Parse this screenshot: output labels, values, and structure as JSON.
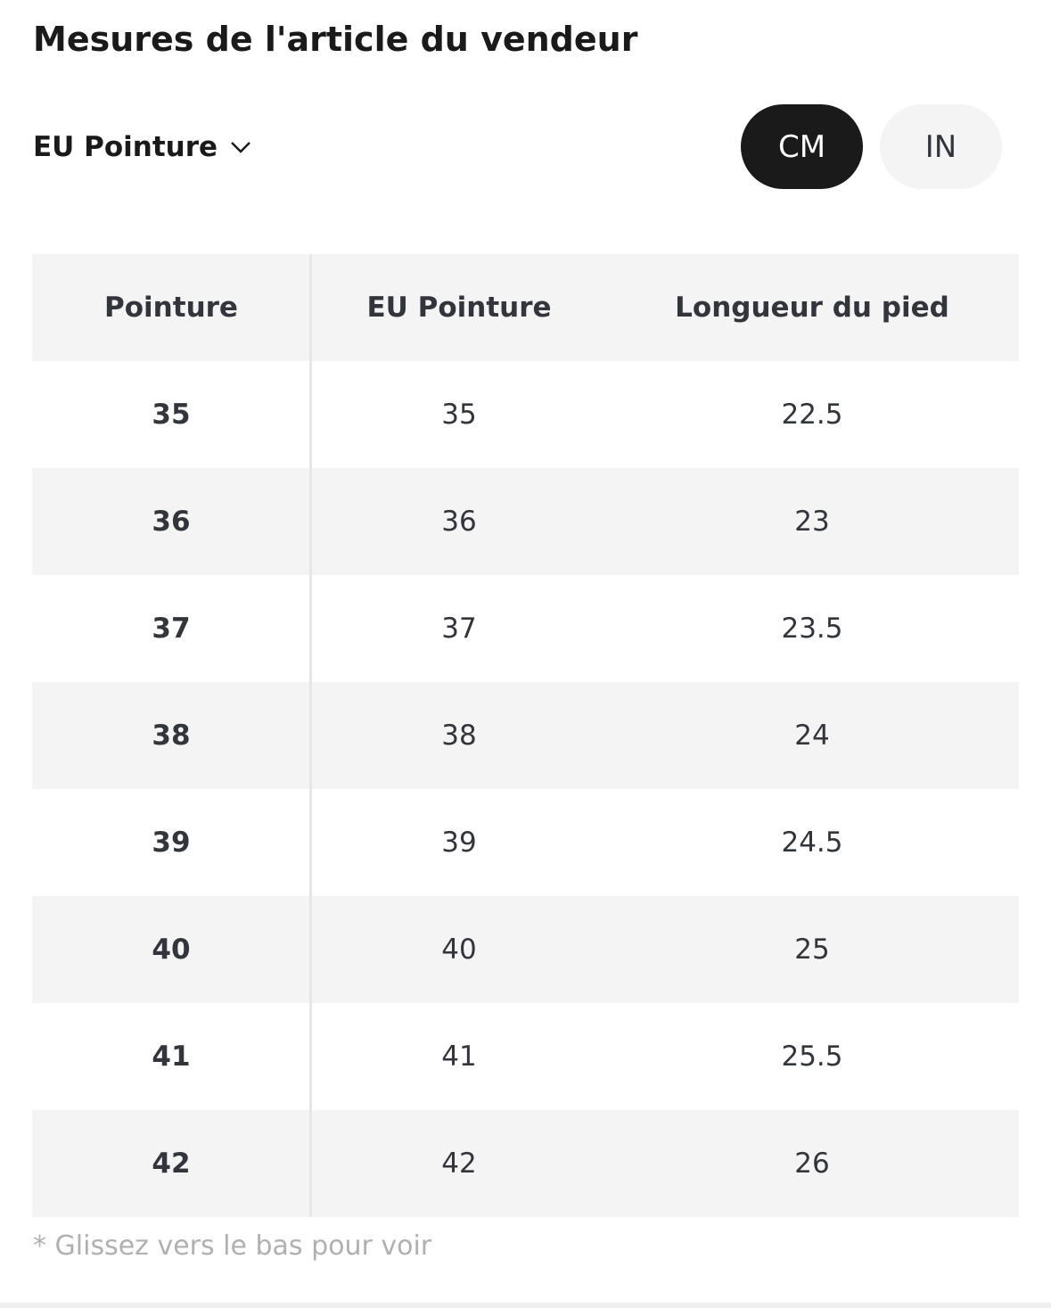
{
  "header": {
    "title": "Mesures de l'article du vendeur"
  },
  "selector": {
    "label": "EU Pointure"
  },
  "units": {
    "options": [
      "CM",
      "IN"
    ],
    "selected": 0
  },
  "table": {
    "columns": [
      "Pointure",
      "EU Pointure",
      "Longueur du pied"
    ],
    "rows": [
      [
        35,
        35,
        22.5
      ],
      [
        36,
        36,
        23
      ],
      [
        37,
        37,
        23.5
      ],
      [
        38,
        38,
        24
      ],
      [
        39,
        39,
        24.5
      ],
      [
        40,
        40,
        25
      ],
      [
        41,
        41,
        25.5
      ],
      [
        42,
        42,
        26
      ]
    ]
  },
  "footnote": "* Glissez vers le bas pour voir"
}
